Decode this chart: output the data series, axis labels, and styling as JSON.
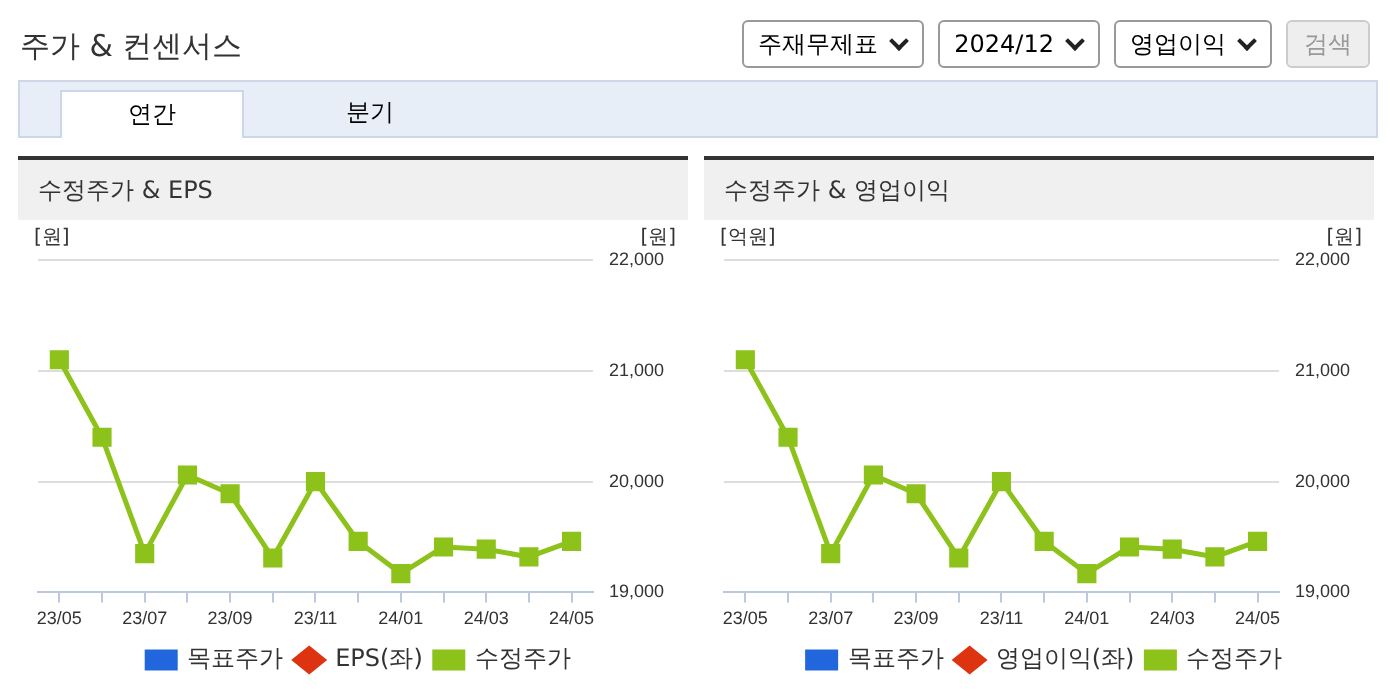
{
  "chart_data": [
    {
      "type": "line",
      "title": "수정주가 & EPS",
      "annotations": [
        "주가 & 컨센서스",
        "주재무제표",
        "2024/12",
        "영업이익",
        "검색",
        "연간",
        "분기"
      ],
      "categories": [
        "23/05",
        null,
        "23/07",
        null,
        "23/09",
        null,
        "23/11",
        null,
        "24/01",
        null,
        "24/03",
        null,
        "24/05"
      ],
      "ylabel": "[원]",
      "y2label": "[원]",
      "y2lim": [
        19000,
        22000
      ],
      "y2ticks": [
        {
          "value": 19000,
          "label": "19,000"
        },
        {
          "value": 20000,
          "label": "20,000"
        },
        {
          "value": 21000,
          "label": "21,000"
        },
        {
          "value": 22000,
          "label": "22,000"
        }
      ],
      "grid": "y",
      "legend": "bottom",
      "series": [
        {
          "name": "목표주가",
          "color": "#2266dd",
          "marker": "square",
          "values": [
            null,
            null,
            null,
            null,
            null,
            null,
            null,
            null,
            null,
            null,
            null,
            null,
            null
          ]
        },
        {
          "name": "EPS(좌)",
          "color": "#dd3311",
          "marker": "diamond",
          "values": [
            null,
            null,
            null,
            null,
            null,
            null,
            null,
            null,
            null,
            null,
            null,
            null,
            null
          ]
        },
        {
          "name": "수정주가",
          "color": "#8cc21a",
          "marker": "square",
          "axis": "y2",
          "values": [
            21100,
            20400,
            19350,
            20060,
            19890,
            19310,
            20000,
            19460,
            19170,
            19410,
            19390,
            19320,
            19460
          ]
        }
      ]
    },
    {
      "type": "line",
      "title": "수정주가 & 영업이익",
      "categories": [
        "23/05",
        null,
        "23/07",
        null,
        "23/09",
        null,
        "23/11",
        null,
        "24/01",
        null,
        "24/03",
        null,
        "24/05"
      ],
      "ylabel": "[억원]",
      "y2label": "[원]",
      "y2lim": [
        19000,
        22000
      ],
      "y2ticks": [
        {
          "value": 19000,
          "label": "19,000"
        },
        {
          "value": 20000,
          "label": "20,000"
        },
        {
          "value": 21000,
          "label": "21,000"
        },
        {
          "value": 22000,
          "label": "22,000"
        }
      ],
      "grid": "y",
      "legend": "bottom",
      "series": [
        {
          "name": "목표주가",
          "color": "#2266dd",
          "marker": "square",
          "values": [
            null,
            null,
            null,
            null,
            null,
            null,
            null,
            null,
            null,
            null,
            null,
            null,
            null
          ]
        },
        {
          "name": "영업이익(좌)",
          "color": "#dd3311",
          "marker": "diamond",
          "values": [
            null,
            null,
            null,
            null,
            null,
            null,
            null,
            null,
            null,
            null,
            null,
            null,
            null
          ]
        },
        {
          "name": "수정주가",
          "color": "#8cc21a",
          "marker": "square",
          "axis": "y2",
          "values": [
            21100,
            20400,
            19350,
            20060,
            19890,
            19310,
            20000,
            19460,
            19170,
            19410,
            19390,
            19320,
            19460
          ]
        }
      ]
    }
  ]
}
